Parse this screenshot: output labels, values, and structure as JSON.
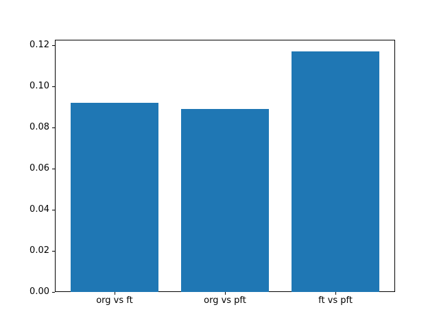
{
  "figure": {
    "background": "#ffffff",
    "text_color": "#000000"
  },
  "chart_data": {
    "type": "bar",
    "title": "",
    "xlabel": "",
    "ylabel": "",
    "categories": [
      "org vs ft",
      "org vs pft",
      "ft vs pft"
    ],
    "values": [
      0.092,
      0.089,
      0.117
    ],
    "bar_color": "#1f77b4",
    "bar_width_fraction": 0.8,
    "xlim": [
      -0.54,
      2.54
    ],
    "ylim": [
      0,
      0.1227
    ],
    "yticks": [
      0.0,
      0.02,
      0.04,
      0.06,
      0.08,
      0.1,
      0.12
    ],
    "ytick_labels": [
      "0.00",
      "0.02",
      "0.04",
      "0.06",
      "0.08",
      "0.10",
      "0.12"
    ],
    "grid": false,
    "legend": null
  }
}
